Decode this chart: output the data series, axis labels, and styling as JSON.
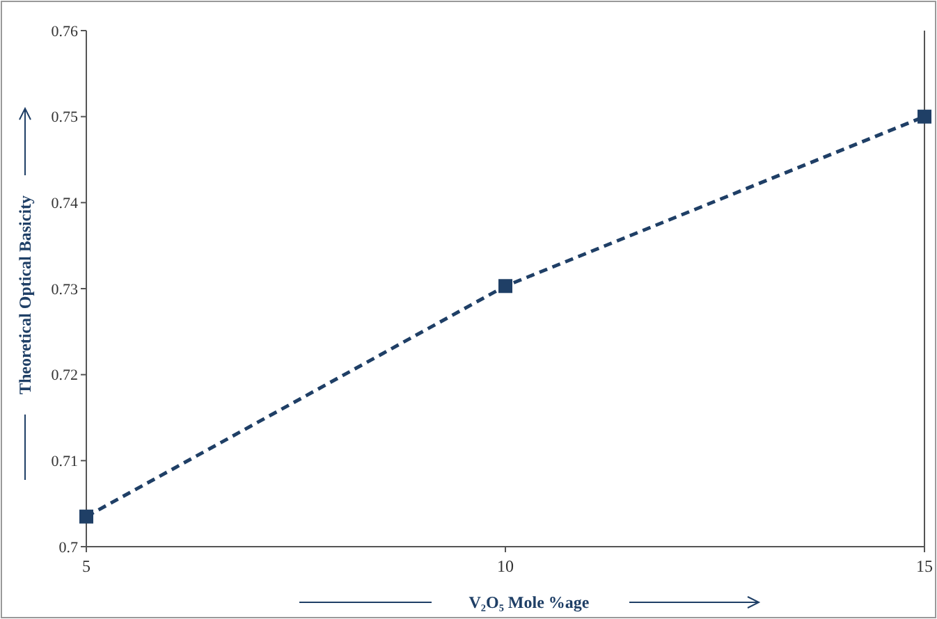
{
  "chart_data": {
    "type": "line",
    "xlabel": "V₂O₅ Mole %age",
    "ylabel": "Theoretical Optical Basicity",
    "x": [
      5,
      10,
      15
    ],
    "series": [
      {
        "color": "#1f3f66",
        "values": [
          0.7035,
          0.7303,
          0.75
        ]
      }
    ],
    "xlim": [
      5,
      15
    ],
    "xticks": [
      5,
      10,
      15
    ],
    "ylim": [
      0.7,
      0.76
    ],
    "yticks": [
      0.7,
      0.71,
      0.72,
      0.73,
      0.74,
      0.75,
      0.76
    ],
    "marker": "square",
    "line_style": "dashed",
    "grid": false
  }
}
